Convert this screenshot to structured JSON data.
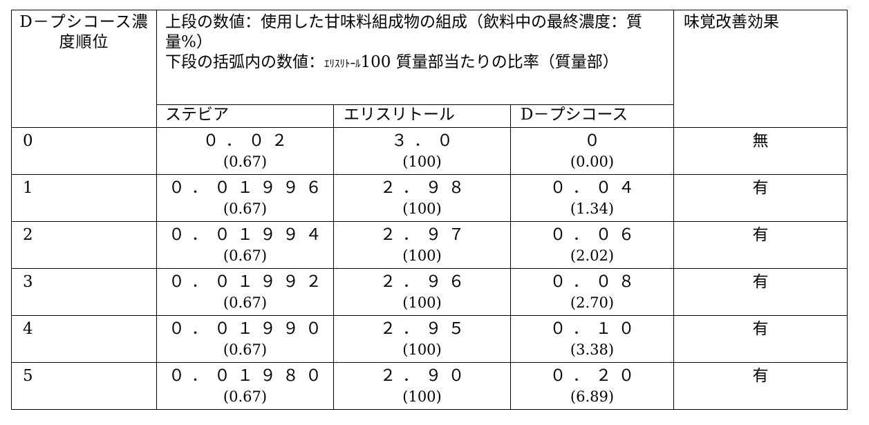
{
  "header": {
    "rank_label": "D－プシコース濃度順位",
    "composition_line1": "上段の数値：使用した甘味料組成物の組成（飲料中の最終濃度：質量%）",
    "composition_line2_pre": "下段の括弧内の数値：",
    "composition_line2_small": "ｴﾘｽﾘﾄｰﾙ",
    "composition_line2_post": "100 質量部当たりの比率（質量部）",
    "effect_label": "味覚改善効果",
    "col_stevia": "ステビア",
    "col_erythritol": "エリスリトール",
    "col_psicose": "D－プシコース"
  },
  "rows": [
    {
      "rank": "0",
      "stevia": "０．０２",
      "stevia_ratio": "(0.67)",
      "erythritol": "３．０",
      "erythritol_ratio": "(100)",
      "psicose": "０",
      "psicose_ratio": "(0.00)",
      "effect": "無"
    },
    {
      "rank": "1",
      "stevia": "０．０１９９６",
      "stevia_ratio": "(0.67)",
      "erythritol": "２．９８",
      "erythritol_ratio": "(100)",
      "psicose": "０．０４",
      "psicose_ratio": "(1.34)",
      "effect": "有"
    },
    {
      "rank": "2",
      "stevia": "０．０１９９４",
      "stevia_ratio": "(0.67)",
      "erythritol": "２．９７",
      "erythritol_ratio": "(100)",
      "psicose": "０．０６",
      "psicose_ratio": "(2.02)",
      "effect": "有"
    },
    {
      "rank": "3",
      "stevia": "０．０１９９２",
      "stevia_ratio": "(0.67)",
      "erythritol": "２．９６",
      "erythritol_ratio": "(100)",
      "psicose": "０．０８",
      "psicose_ratio": "(2.70)",
      "effect": "有"
    },
    {
      "rank": "4",
      "stevia": "０．０１９９０",
      "stevia_ratio": "(0.67)",
      "erythritol": "２．９５",
      "erythritol_ratio": "(100)",
      "psicose": "０．１０",
      "psicose_ratio": "(3.38)",
      "effect": "有"
    },
    {
      "rank": "5",
      "stevia": "０．０１９８０",
      "stevia_ratio": "(0.67)",
      "erythritol": "２．９０",
      "erythritol_ratio": "(100)",
      "psicose": "０．２０",
      "psicose_ratio": "(6.89)",
      "effect": "有"
    }
  ]
}
